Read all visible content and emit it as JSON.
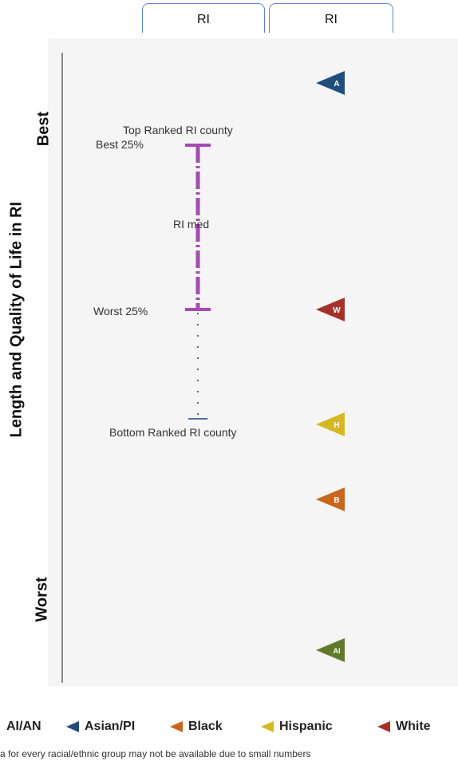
{
  "header": {
    "tab1_label": "RI",
    "tab2_label": "RI"
  },
  "axis": {
    "label": "Length and Quality of Life in RI",
    "best_label": "Best",
    "worst_label": "Worst"
  },
  "annotations": {
    "top_ranked": "Top Ranked RI county",
    "best25": "Best 25%",
    "median": "RI med",
    "worst25": "Worst 25%",
    "bottom_ranked": "Bottom Ranked RI county"
  },
  "chart_data": {
    "type": "scatter",
    "y_direction": "top = Best, bottom = Worst",
    "county_range": {
      "top_ranked": "Top Ranked RI county",
      "best_25": "Best 25%",
      "median": "RI med",
      "worst_25": "Worst 25%",
      "bottom_ranked": "Bottom Ranked RI county"
    },
    "groups": [
      {
        "name": "Asian/PI",
        "marker": "A",
        "color": "#1f4e79",
        "rank_order": 1
      },
      {
        "name": "White",
        "marker": "W",
        "color": "#a3322a",
        "rank_order": 2
      },
      {
        "name": "Hispanic",
        "marker": "H",
        "color": "#d4b820",
        "rank_order": 3
      },
      {
        "name": "Black",
        "marker": "B",
        "color": "#c9651c",
        "rank_order": 4
      },
      {
        "name": "AI/AN",
        "marker": "AI",
        "color": "#5f7a2a",
        "rank_order": 5
      }
    ]
  },
  "legend": {
    "items": [
      {
        "label": "AI/AN",
        "color": "#5f7a2a"
      },
      {
        "label": "Asian/PI",
        "color": "#1f4e79"
      },
      {
        "label": "Black",
        "color": "#c9651c"
      },
      {
        "label": "Hispanic",
        "color": "#d4b820"
      },
      {
        "label": "White",
        "color": "#a3322a"
      }
    ]
  },
  "footnote": "a for every racial/ethnic group may not be available due to small numbers"
}
